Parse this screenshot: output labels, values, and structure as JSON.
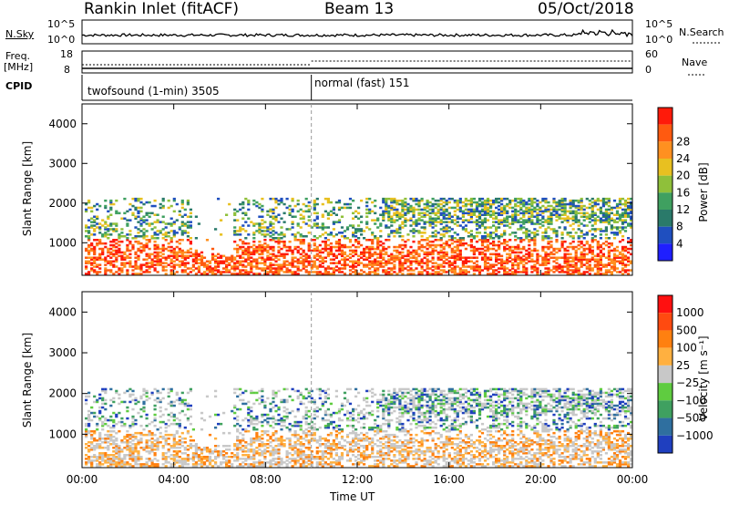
{
  "header": {
    "station": "Rankin Inlet (fitACF)",
    "beam": "Beam 13",
    "date": "05/Oct/2018"
  },
  "aux": {
    "nsky_label": "N.Sky",
    "nsky_top": "10^5",
    "nsky_bottom": "10^0",
    "nsearch_label": "N.Search",
    "freq_label_line1": "Freq.",
    "freq_label_line2": "[MHz]",
    "freq_top": "18",
    "freq_bottom": "8",
    "nave_top": "60",
    "nave_bottom": "0",
    "nave_label": "Nave",
    "cpid_label": "CPID",
    "cpid_segments": [
      {
        "name": "twofsound (1-min) 3505"
      },
      {
        "name": "normal (fast) 151"
      }
    ]
  },
  "chart_data": [
    {
      "type": "heatmap",
      "title": "",
      "xlabel": "Time UT",
      "ylabel": "Slant Range [km]",
      "xticks": [
        "00:00",
        "04:00",
        "08:00",
        "12:00",
        "16:00",
        "20:00",
        "00:00"
      ],
      "yticks": [
        "1000",
        "2000",
        "3000",
        "4000"
      ],
      "xlim_hours": [
        0,
        24
      ],
      "ylim_km": [
        180,
        4500
      ],
      "colorbar": {
        "label": "Power [dB]",
        "ticks": [
          "4",
          "8",
          "12",
          "16",
          "20",
          "24",
          "28"
        ],
        "colors": [
          "#1f1fff",
          "#1f4fbf",
          "#2a7a6a",
          "#3fa060",
          "#8fc03a",
          "#e8c020",
          "#ff9020",
          "#ff5a10",
          "#ff1a0a"
        ]
      },
      "mode_change_hours": 10.0
    },
    {
      "type": "heatmap",
      "title": "",
      "xlabel": "Time UT",
      "ylabel": "Slant Range [km]",
      "xticks": [
        "00:00",
        "04:00",
        "08:00",
        "12:00",
        "16:00",
        "20:00",
        "00:00"
      ],
      "yticks": [
        "1000",
        "2000",
        "3000",
        "4000"
      ],
      "xlim_hours": [
        0,
        24
      ],
      "ylim_km": [
        180,
        4500
      ],
      "colorbar": {
        "label": "Velocity [m s⁻¹]",
        "ticks": [
          "1000",
          "500",
          "100",
          "25",
          "−25",
          "−100",
          "−500",
          "−1000"
        ],
        "colors": [
          "#1f3fbf",
          "#2f6f9f",
          "#3fa060",
          "#5fcc40",
          "#c8c8c8",
          "#ffb040",
          "#ff8010",
          "#ff4a10",
          "#ff1010"
        ]
      },
      "mode_change_hours": 10.0
    }
  ],
  "xaxis_title": "Time UT"
}
